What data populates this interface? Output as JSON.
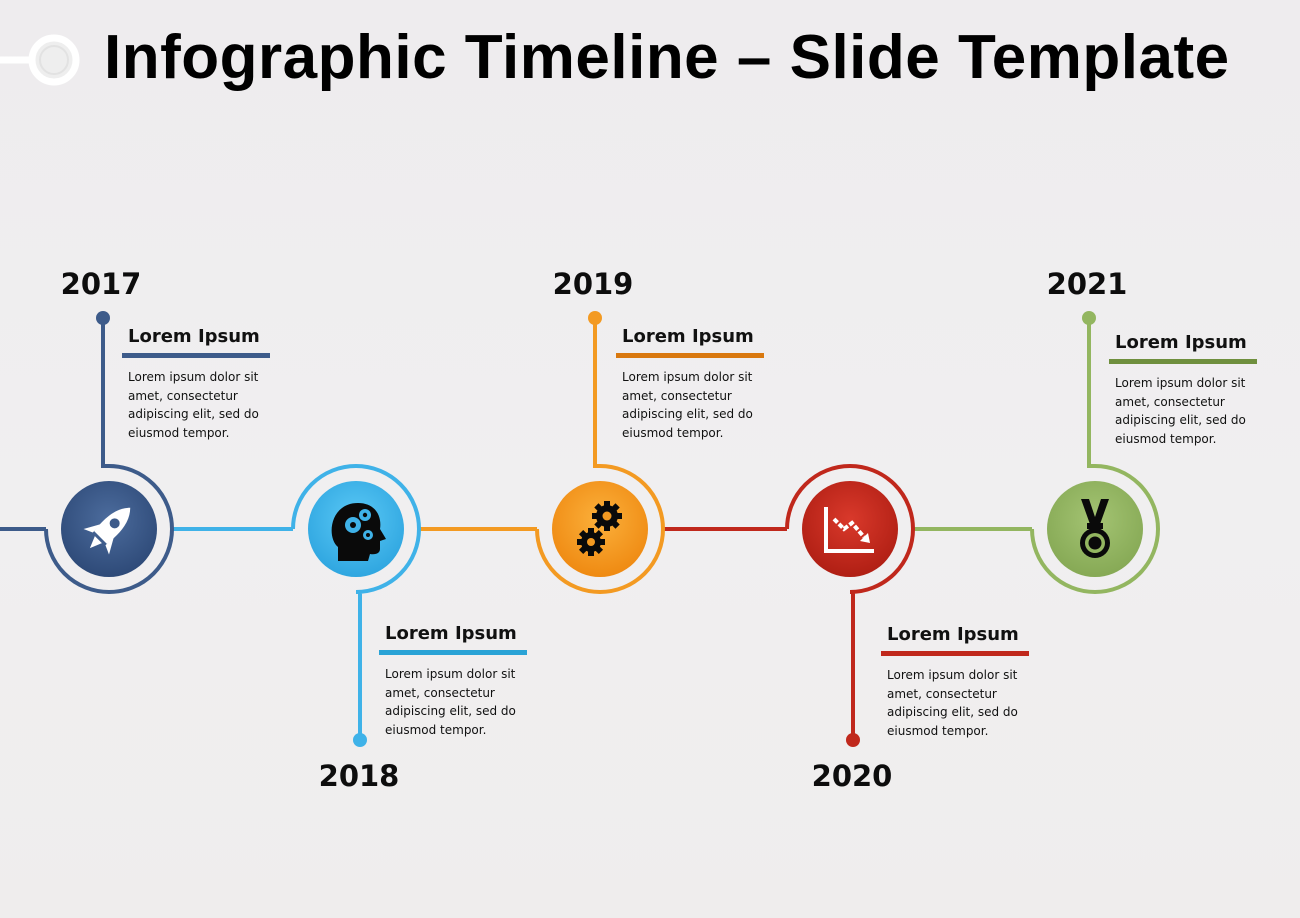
{
  "slide": {
    "title": "Infographic Timeline – Slide Template"
  },
  "milestones": [
    {
      "year": "2017",
      "heading": "Lorem Ipsum",
      "text": "Lorem ipsum dolor sit amet, consectetur adipiscing elit, sed do eiusmod tempor.",
      "color": "#3d5b8a",
      "icon": "rocket-icon"
    },
    {
      "year": "2018",
      "heading": "Lorem Ipsum",
      "text": "Lorem ipsum dolor sit amet, consectetur adipiscing elit, sed do eiusmod tempor.",
      "color": "#3fb2e8",
      "icon": "head-gears-icon"
    },
    {
      "year": "2019",
      "heading": "Lorem Ipsum",
      "text": "Lorem ipsum dolor sit amet, consectetur adipiscing elit, sed do eiusmod tempor.",
      "color": "#f39a22",
      "icon": "gears-icon"
    },
    {
      "year": "2020",
      "heading": "Lorem Ipsum",
      "text": "Lorem ipsum dolor sit amet, consectetur adipiscing elit, sed do eiusmod tempor.",
      "color": "#c0281c",
      "icon": "declining-chart-icon"
    },
    {
      "year": "2021",
      "heading": "Lorem Ipsum",
      "text": "Lorem ipsum dolor sit amet, consectetur adipiscing elit, sed do eiusmod tempor.",
      "color": "#93b660",
      "icon": "medal-icon"
    }
  ]
}
